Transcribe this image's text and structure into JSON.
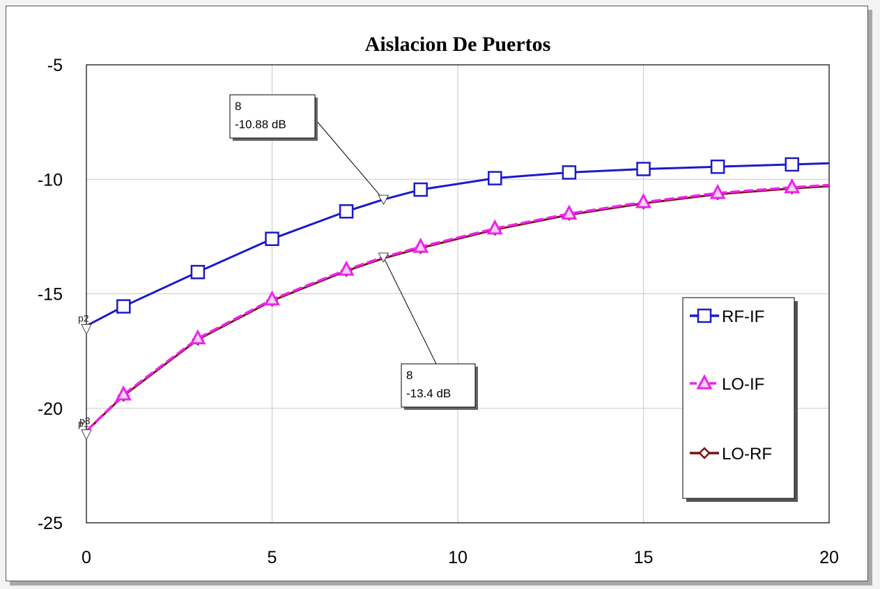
{
  "chart_data": {
    "type": "line",
    "title": "Aislacion De Puertos",
    "xlabel": "",
    "ylabel": "",
    "xlim": [
      0,
      20
    ],
    "ylim": [
      -25,
      -5
    ],
    "x_ticks": [
      "0",
      "5",
      "10",
      "15",
      "20"
    ],
    "y_ticks": [
      "-5",
      "-10",
      "-15",
      "-20",
      "-25"
    ],
    "grid": true,
    "legend_position": "right",
    "series": [
      {
        "name": "RF-IF",
        "color": "#1a1acc",
        "style": "solid",
        "marker": "square",
        "x": [
          0,
          1,
          3,
          5,
          7,
          8,
          9,
          11,
          13,
          15,
          17,
          19,
          20
        ],
        "y": [
          -16.4,
          -15.55,
          -14.05,
          -12.6,
          -11.4,
          -10.88,
          -10.45,
          -9.95,
          -9.7,
          -9.55,
          -9.45,
          -9.35,
          -9.3
        ]
      },
      {
        "name": "LO-IF",
        "color": "#ee22ee",
        "style": "dashed",
        "marker": "triangle",
        "x": [
          0,
          1,
          3,
          5,
          7,
          8,
          9,
          11,
          13,
          15,
          17,
          19,
          20
        ],
        "y": [
          -21.0,
          -19.4,
          -16.95,
          -15.25,
          -13.95,
          -13.4,
          -12.95,
          -12.15,
          -11.5,
          -11.0,
          -10.6,
          -10.35,
          -10.25
        ]
      },
      {
        "name": "LO-RF",
        "color": "#7a1010",
        "style": "solid",
        "marker": "diamond",
        "x": [
          0,
          1,
          3,
          5,
          7,
          8,
          9,
          11,
          13,
          15,
          17,
          19,
          20
        ],
        "y": [
          -21.0,
          -19.45,
          -17.0,
          -15.3,
          -14.0,
          -13.45,
          -13.0,
          -12.2,
          -11.55,
          -11.05,
          -10.65,
          -10.4,
          -10.3
        ]
      }
    ],
    "markers": [
      {
        "label": "p2",
        "x": 0,
        "y": -16.4
      },
      {
        "label": "p1",
        "x": 0,
        "y": -21.0
      },
      {
        "label": "p3",
        "x": 0,
        "y": -21.0
      }
    ],
    "annotations": [
      {
        "x": 8,
        "y": -10.88,
        "line1": "8",
        "line2": "-10.88 dB"
      },
      {
        "x": 8,
        "y": -13.4,
        "line1": "8",
        "line2": "-13.4 dB"
      }
    ]
  }
}
